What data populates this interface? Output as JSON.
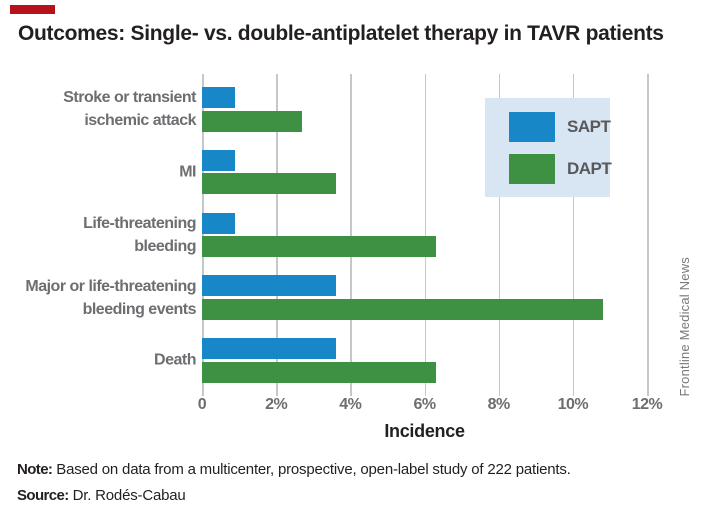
{
  "header": {
    "title": "Outcomes: Single- vs. double-antiplatelet therapy in TAVR patients"
  },
  "chart_data": {
    "type": "bar",
    "orientation": "horizontal",
    "title": "Outcomes: Single- vs. double-antiplatelet therapy in TAVR patients",
    "categories": [
      "Stroke or transient ischemic attack",
      "MI",
      "Life-threatening bleeding",
      "Major or life-threatening bleeding events",
      "Death"
    ],
    "category_label_lines": [
      [
        "Stroke or transient",
        "ischemic attack"
      ],
      [
        "MI"
      ],
      [
        "Life-threatening",
        "bleeding"
      ],
      [
        "Major or life-threatening",
        "bleeding events"
      ],
      [
        "Death"
      ]
    ],
    "series": [
      {
        "name": "SAPT",
        "color": "#1787c8",
        "values": [
          0.9,
          0.9,
          0.9,
          3.6,
          3.6
        ]
      },
      {
        "name": "DAPT",
        "color": "#3e9142",
        "values": [
          2.7,
          3.6,
          6.3,
          10.8,
          6.3
        ]
      }
    ],
    "xlabel": "Incidence",
    "xlim": [
      0,
      12
    ],
    "x_ticks": [
      0,
      2,
      4,
      6,
      8,
      10,
      12
    ],
    "x_tick_labels": [
      "0",
      "2%",
      "4%",
      "6%",
      "8%",
      "10%",
      "12%"
    ],
    "grid": true,
    "legend_position": "top-right"
  },
  "legend": {
    "items": [
      {
        "label": "SAPT",
        "color": "#1787c8"
      },
      {
        "label": "DAPT",
        "color": "#3e9142"
      }
    ]
  },
  "footer": {
    "note_label": "Note:",
    "note_text": " Based on data from a multicenter, prospective, open-label study of 222 patients.",
    "source_label": "Source:",
    "source_text": " Dr. Rodés-Cabau"
  },
  "credit": "Frontline Medical News",
  "colors": {
    "sapt_blue": "#1787c8",
    "dapt_green": "#3e9142",
    "legend_bg": "#d8e6f3",
    "gridline": "#c6c7c9",
    "label_gray": "#6d6e71",
    "brand_red": "#b5121b"
  }
}
